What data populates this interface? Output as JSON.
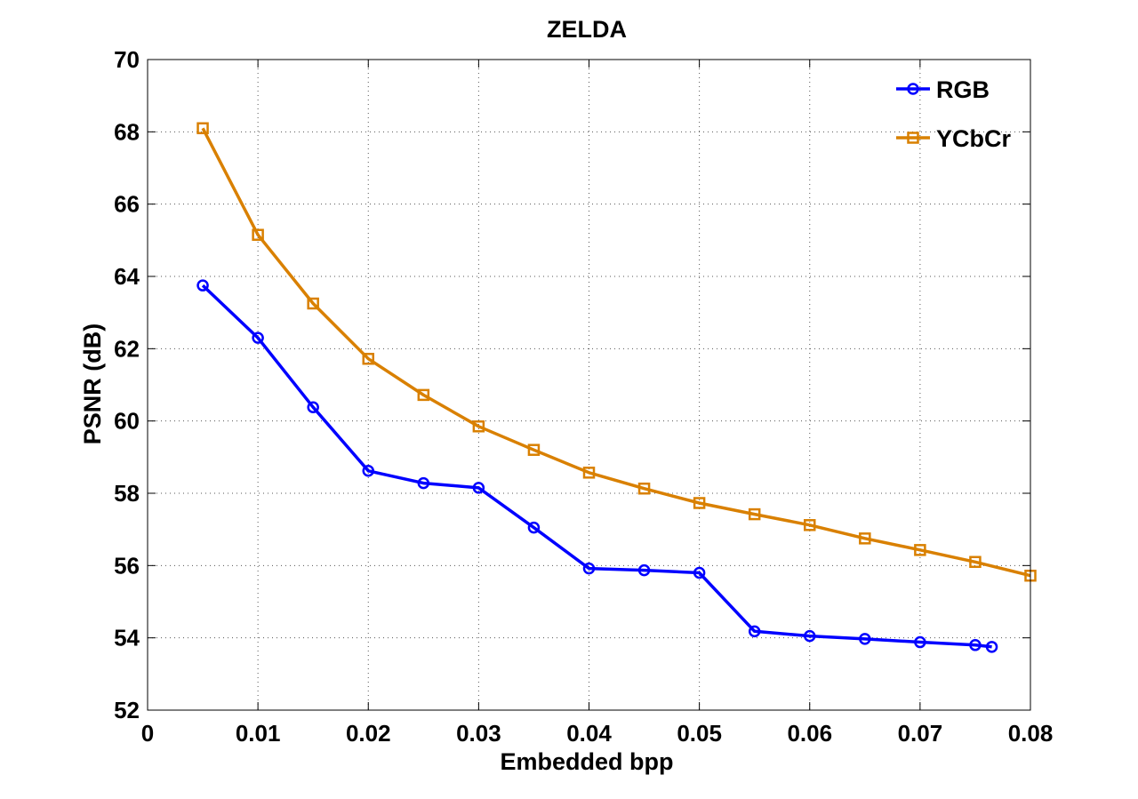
{
  "chart_data": {
    "type": "line",
    "title": "ZELDA",
    "xlabel": "Embedded bpp",
    "ylabel": "PSNR (dB)",
    "xlim": [
      0,
      0.08
    ],
    "ylim": [
      52,
      70
    ],
    "xticks": [
      0,
      0.01,
      0.02,
      0.03,
      0.04,
      0.05,
      0.06,
      0.07,
      0.08
    ],
    "xtick_labels": [
      "0",
      "0.01",
      "0.02",
      "0.03",
      "0.04",
      "0.05",
      "0.06",
      "0.07",
      "0.08"
    ],
    "yticks": [
      52,
      54,
      56,
      58,
      60,
      62,
      64,
      66,
      68,
      70
    ],
    "ytick_labels": [
      "52",
      "54",
      "56",
      "58",
      "60",
      "62",
      "64",
      "66",
      "68",
      "70"
    ],
    "grid": true,
    "legend_position": "top-right",
    "series": [
      {
        "name": "RGB",
        "color": "#0000ff",
        "marker": "circle",
        "x": [
          0.005,
          0.01,
          0.015,
          0.02,
          0.025,
          0.03,
          0.035,
          0.04,
          0.045,
          0.05,
          0.055,
          0.06,
          0.065,
          0.07,
          0.075,
          0.0765
        ],
        "y": [
          63.75,
          62.3,
          60.38,
          58.62,
          58.28,
          58.15,
          57.05,
          55.92,
          55.87,
          55.8,
          54.18,
          54.05,
          53.97,
          53.88,
          53.8,
          53.75
        ]
      },
      {
        "name": "YCbCr",
        "color": "#d98000",
        "marker": "square",
        "x": [
          0.005,
          0.01,
          0.015,
          0.02,
          0.025,
          0.03,
          0.035,
          0.04,
          0.045,
          0.05,
          0.055,
          0.06,
          0.065,
          0.07,
          0.075,
          0.08
        ],
        "y": [
          68.1,
          65.15,
          63.25,
          61.72,
          60.72,
          59.85,
          59.2,
          58.57,
          58.13,
          57.73,
          57.42,
          57.12,
          56.75,
          56.43,
          56.1,
          55.72
        ]
      }
    ]
  }
}
